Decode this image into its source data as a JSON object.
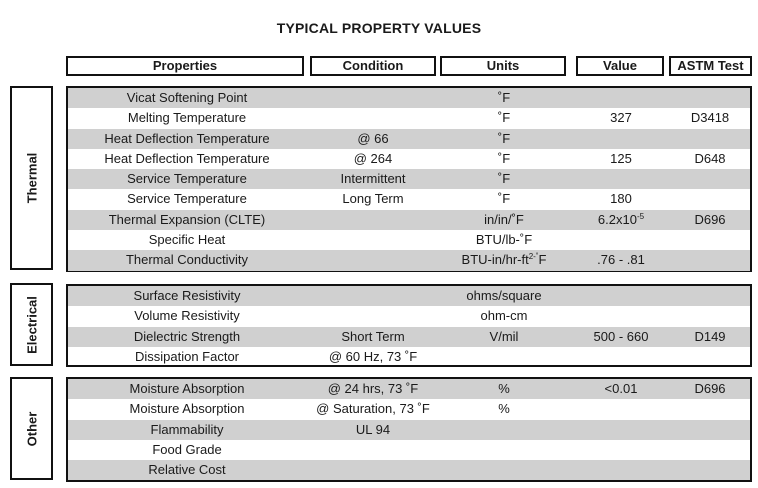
{
  "title": "TYPICAL PROPERTY VALUES",
  "headers": {
    "properties": "Properties",
    "condition": "Condition",
    "units": "Units",
    "value": "Value",
    "astm": "ASTM Test"
  },
  "groups": [
    {
      "name": "Thermal",
      "rows": [
        {
          "property": "Vicat Softening Point",
          "condition": "",
          "units": "˚F",
          "value": "",
          "astm": ""
        },
        {
          "property": "Melting Temperature",
          "condition": "",
          "units": "˚F",
          "value": "327",
          "astm": "D3418"
        },
        {
          "property": "Heat Deflection Temperature",
          "condition": "@ 66",
          "units": "˚F",
          "value": "",
          "astm": ""
        },
        {
          "property": "Heat Deflection Temperature",
          "condition": "@ 264",
          "units": "˚F",
          "value": "125",
          "astm": "D648"
        },
        {
          "property": "Service Temperature",
          "condition": "Intermittent",
          "units": "˚F",
          "value": "",
          "astm": ""
        },
        {
          "property": "Service Temperature",
          "condition": "Long Term",
          "units": "˚F",
          "value": "180",
          "astm": ""
        },
        {
          "property": "Thermal Expansion (CLTE)",
          "condition": "",
          "units": "in/in/˚F",
          "value": "6.2x10",
          "value_sup": "-5",
          "astm": "D696"
        },
        {
          "property": "Specific Heat",
          "condition": "",
          "units": "BTU/lb-˚F",
          "value": "",
          "astm": ""
        },
        {
          "property": "Thermal Conductivity",
          "condition": "",
          "units": "BTU-in/hr-ft",
          "units_sup": "2-˚",
          "units_tail": "F",
          "value": ".76 - .81",
          "astm": ""
        }
      ]
    },
    {
      "name": "Electrical",
      "rows": [
        {
          "property": "Surface Resistivity",
          "condition": "",
          "units": "ohms/square",
          "value": "",
          "astm": ""
        },
        {
          "property": "Volume Resistivity",
          "condition": "",
          "units": "ohm-cm",
          "value": "",
          "astm": ""
        },
        {
          "property": "Dielectric Strength",
          "condition": "Short Term",
          "units": "V/mil",
          "value": "500 - 660",
          "astm": "D149"
        },
        {
          "property": "Dissipation Factor",
          "condition": "@ 60 Hz, 73 ˚F",
          "units": "",
          "value": "",
          "astm": ""
        }
      ]
    },
    {
      "name": "Other",
      "rows": [
        {
          "property": "Moisture Absorption",
          "condition": "@ 24 hrs, 73 ˚F",
          "units": "%",
          "value": "<0.01",
          "astm": "D696"
        },
        {
          "property": "Moisture Absorption",
          "condition": "@ Saturation, 73 ˚F",
          "units": "%",
          "value": "",
          "astm": ""
        },
        {
          "property": "Flammability",
          "condition": "UL 94",
          "units": "",
          "value": "",
          "astm": ""
        },
        {
          "property": "Food Grade",
          "condition": "",
          "units": "",
          "value": "",
          "astm": ""
        },
        {
          "property": "Relative Cost",
          "condition": "",
          "units": "",
          "value": "",
          "astm": ""
        }
      ]
    }
  ]
}
